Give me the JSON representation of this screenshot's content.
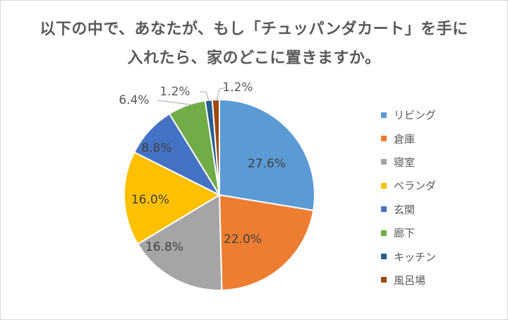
{
  "chart_data": {
    "type": "pie",
    "title": "以下の中で、あなたが、もし「チュッパンダカート」を手に入れたら、家のどこに置きますか。",
    "title_lines": [
      "以下の中で、あなたが、もし「チュッパンダカート」を手に",
      "入れたら、家のどこに置きますか。"
    ],
    "categories": [
      "リビング",
      "倉庫",
      "寝室",
      "ベランダ",
      "玄関",
      "廊下",
      "キッチン",
      "風呂場"
    ],
    "values": [
      27.6,
      22.0,
      16.8,
      16.0,
      8.8,
      6.4,
      1.2,
      1.2
    ],
    "labels": [
      "27.6%",
      "22.0%",
      "16.8%",
      "16.0%",
      "8.8%",
      "6.4%",
      "1.2%",
      "1.2%"
    ],
    "colors": [
      "#5b9bd5",
      "#ed7d31",
      "#a5a5a5",
      "#ffc000",
      "#4472c4",
      "#70ad47",
      "#255e91",
      "#9e480e"
    ],
    "legend_position": "right",
    "start_angle_deg": 0,
    "direction": "clockwise"
  },
  "legend": [
    {
      "label": "リビング",
      "color": "#5b9bd5"
    },
    {
      "label": "倉庫",
      "color": "#ed7d31"
    },
    {
      "label": "寝室",
      "color": "#a5a5a5"
    },
    {
      "label": "ベランダ",
      "color": "#ffc000"
    },
    {
      "label": "玄関",
      "color": "#4472c4"
    },
    {
      "label": "廊下",
      "color": "#70ad47"
    },
    {
      "label": "キッチン",
      "color": "#255e91"
    },
    {
      "label": "風呂場",
      "color": "#9e480e"
    }
  ]
}
